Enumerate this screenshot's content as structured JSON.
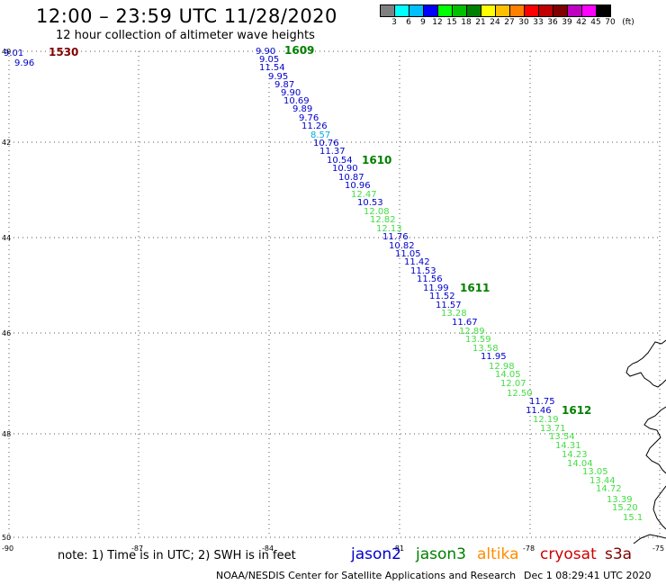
{
  "header": {
    "title": "12:00 – 23:59 UTC 11/28/2020",
    "subtitle": "12 hour collection of altimeter wave heights"
  },
  "legend": {
    "colors": [
      "#808080",
      "#00ffff",
      "#00bfff",
      "#0000ff",
      "#00ff00",
      "#00c000",
      "#008000",
      "#ffff00",
      "#ffc000",
      "#ff8000",
      "#ff0000",
      "#c00000",
      "#800000",
      "#c000c0",
      "#ff00ff",
      "#000000"
    ],
    "labels": [
      "3",
      "6",
      "9",
      "12",
      "15",
      "18",
      "21",
      "24",
      "27",
      "30",
      "33",
      "36",
      "39",
      "42",
      "45",
      "70",
      "(ft)"
    ]
  },
  "axes": {
    "lat_labels": [
      "40",
      "42",
      "44",
      "46",
      "48",
      "50"
    ],
    "lon_labels": [
      "-90",
      "-87",
      "-84",
      "-81",
      "-78",
      "-75"
    ]
  },
  "satellites": [
    {
      "name": "jason2",
      "color": "#0000cc"
    },
    {
      "name": "jason3",
      "color": "#008000"
    },
    {
      "name": "altika",
      "color": "#ff8c00"
    },
    {
      "name": "cryosat",
      "color": "#cc0000"
    },
    {
      "name": "s3a",
      "color": "#800000"
    }
  ],
  "time_labels": [
    {
      "text": "1530",
      "color": "#800000"
    },
    {
      "text": "1609",
      "color": "#008000"
    },
    {
      "text": "1610",
      "color": "#008000"
    },
    {
      "text": "1611",
      "color": "#008000"
    },
    {
      "text": "1612",
      "color": "#008000"
    }
  ],
  "wave_heights": [
    {
      "text": "9.01",
      "color": "#0000cc"
    },
    {
      "text": "9.96",
      "color": "#0000cc"
    },
    {
      "text": "9.90",
      "color": "#0000cc"
    },
    {
      "text": "9.05",
      "color": "#0000cc"
    },
    {
      "text": "11.54",
      "color": "#0000cc"
    },
    {
      "text": "9.95",
      "color": "#0000cc"
    },
    {
      "text": "9.87",
      "color": "#0000cc"
    },
    {
      "text": "9.90",
      "color": "#0000cc"
    },
    {
      "text": "10.69",
      "color": "#0000cc"
    },
    {
      "text": "9.89",
      "color": "#0000cc"
    },
    {
      "text": "9.76",
      "color": "#0000cc"
    },
    {
      "text": "11.26",
      "color": "#0000cc"
    },
    {
      "text": "8.57",
      "color": "#00aadd"
    },
    {
      "text": "10.76",
      "color": "#0000cc"
    },
    {
      "text": "11.37",
      "color": "#0000cc"
    },
    {
      "text": "10.54",
      "color": "#0000cc"
    },
    {
      "text": "10.90",
      "color": "#0000cc"
    },
    {
      "text": "10.87",
      "color": "#0000cc"
    },
    {
      "text": "10.96",
      "color": "#0000cc"
    },
    {
      "text": "12.47",
      "color": "#44dd44"
    },
    {
      "text": "10.53",
      "color": "#0000cc"
    },
    {
      "text": "12.08",
      "color": "#44dd44"
    },
    {
      "text": "12.82",
      "color": "#44dd44"
    },
    {
      "text": "12.13",
      "color": "#44dd44"
    },
    {
      "text": "11.76",
      "color": "#0000cc"
    },
    {
      "text": "10.82",
      "color": "#0000cc"
    },
    {
      "text": "11.05",
      "color": "#0000cc"
    },
    {
      "text": "11.42",
      "color": "#0000cc"
    },
    {
      "text": "11.53",
      "color": "#0000cc"
    },
    {
      "text": "11.56",
      "color": "#0000cc"
    },
    {
      "text": "11.99",
      "color": "#0000cc"
    },
    {
      "text": "11.52",
      "color": "#0000cc"
    },
    {
      "text": "11.57",
      "color": "#0000cc"
    },
    {
      "text": "13.28",
      "color": "#44dd44"
    },
    {
      "text": "11.67",
      "color": "#0000cc"
    },
    {
      "text": "12.89",
      "color": "#44dd44"
    },
    {
      "text": "13.59",
      "color": "#44dd44"
    },
    {
      "text": "13.58",
      "color": "#44dd44"
    },
    {
      "text": "11.95",
      "color": "#0000cc"
    },
    {
      "text": "12.98",
      "color": "#44dd44"
    },
    {
      "text": "14.05",
      "color": "#44dd44"
    },
    {
      "text": "12.07",
      "color": "#44dd44"
    },
    {
      "text": "12.50",
      "color": "#44dd44"
    },
    {
      "text": "11.75",
      "color": "#0000cc"
    },
    {
      "text": "11.46",
      "color": "#0000cc"
    },
    {
      "text": "12.19",
      "color": "#44dd44"
    },
    {
      "text": "13.71",
      "color": "#44dd44"
    },
    {
      "text": "13.54",
      "color": "#44dd44"
    },
    {
      "text": "14.31",
      "color": "#44dd44"
    },
    {
      "text": "14.23",
      "color": "#44dd44"
    },
    {
      "text": "14.04",
      "color": "#44dd44"
    },
    {
      "text": "13.05",
      "color": "#44dd44"
    },
    {
      "text": "13.44",
      "color": "#44dd44"
    },
    {
      "text": "14.72",
      "color": "#44dd44"
    },
    {
      "text": "13.39",
      "color": "#44dd44"
    },
    {
      "text": "15.20",
      "color": "#44dd44"
    },
    {
      "text": "15.1",
      "color": "#44dd44"
    }
  ],
  "footer": {
    "note": "note: 1) Time is in UTC; 2) SWH is in feet",
    "credit": "NOAA/NESDIS Center for Satellite Applications and Research",
    "generated": "Dec  1 08:29:41 UTC 2020"
  }
}
